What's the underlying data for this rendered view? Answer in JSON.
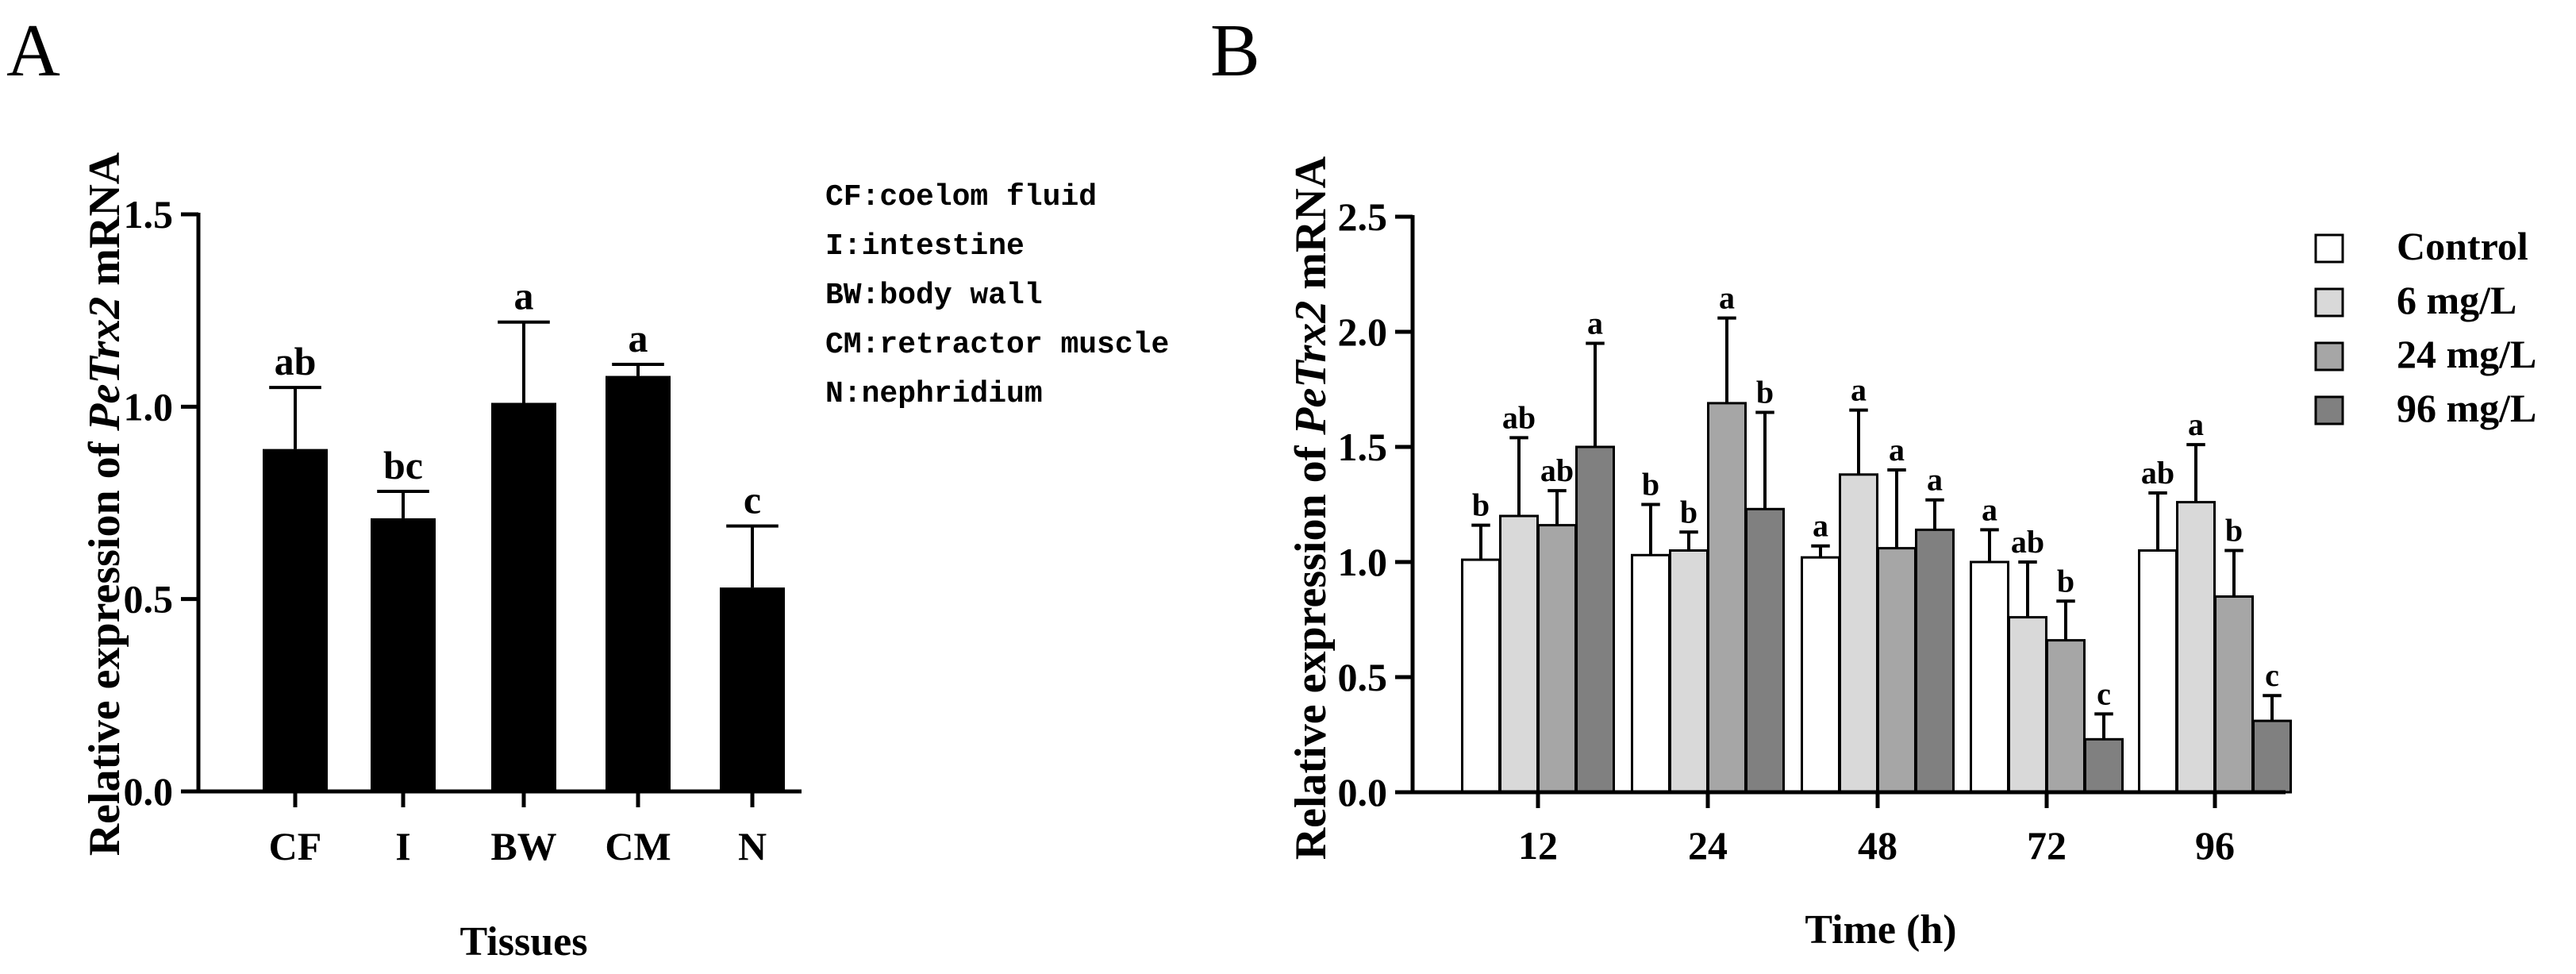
{
  "panels": {
    "a": {
      "letter": "A"
    },
    "b": {
      "letter": "B"
    }
  },
  "chart_data": [
    {
      "type": "bar",
      "panel": "A",
      "categories": [
        "CF",
        "I",
        "BW",
        "CM",
        "N"
      ],
      "values": [
        0.89,
        0.71,
        1.01,
        1.08,
        0.53
      ],
      "errors": [
        0.16,
        0.07,
        0.21,
        0.03,
        0.16
      ],
      "sig_letters": [
        "ab",
        "bc",
        "a",
        "a",
        "c"
      ],
      "xlabel": "Tissues",
      "ylabel_prefix": "Relative expression of ",
      "ylabel_italic": "PeTrx2",
      "ylabel_suffix": " mRNA",
      "ylim": [
        0,
        1.5
      ],
      "yticks": [
        "0.0",
        "0.5",
        "1.0",
        "1.5"
      ],
      "yticks_values": [
        0,
        0.5,
        1.0,
        1.5
      ],
      "bar_color": "#000000",
      "legend_placement": "top-right",
      "legend": [
        "CF:coelom fluid",
        "I:intestine",
        "BW:body wall",
        "CM:retractor muscle",
        "N:nephridium"
      ]
    },
    {
      "type": "bar",
      "panel": "B",
      "categories": [
        "12",
        "24",
        "48",
        "72",
        "96"
      ],
      "series": [
        {
          "name": "Control",
          "color": "#ffffff",
          "values": [
            1.01,
            1.03,
            1.02,
            1.0,
            1.05
          ],
          "errors": [
            0.15,
            0.22,
            0.05,
            0.14,
            0.25
          ],
          "sig_letters": [
            "b",
            "b",
            "a",
            "a",
            "ab"
          ]
        },
        {
          "name": "6 mg/L",
          "color": "#d9d9d9",
          "values": [
            1.2,
            1.05,
            1.38,
            0.76,
            1.26
          ],
          "errors": [
            0.34,
            0.08,
            0.28,
            0.24,
            0.25
          ],
          "sig_letters": [
            "ab",
            "b",
            "a",
            "ab",
            "a"
          ]
        },
        {
          "name": "24 mg/L",
          "color": "#a6a6a6",
          "values": [
            1.16,
            1.69,
            1.06,
            0.66,
            0.85
          ],
          "errors": [
            0.15,
            0.37,
            0.34,
            0.17,
            0.2
          ],
          "sig_letters": [
            "ab",
            "a",
            "a",
            "b",
            "b"
          ]
        },
        {
          "name": "96 mg/L",
          "color": "#808080",
          "values": [
            1.5,
            1.23,
            1.14,
            0.23,
            0.31
          ],
          "errors": [
            0.45,
            0.42,
            0.13,
            0.11,
            0.11
          ],
          "sig_letters": [
            "a",
            "b",
            "a",
            "c",
            "c"
          ]
        }
      ],
      "xlabel": "Time (h)",
      "ylabel_prefix": "Relative expression of ",
      "ylabel_italic": "PeTrx2",
      "ylabel_suffix": " mRNA",
      "ylim": [
        0,
        2.5
      ],
      "yticks": [
        "0.0",
        "0.5",
        "1.0",
        "1.5",
        "2.0",
        "2.5"
      ],
      "yticks_values": [
        0,
        0.5,
        1.0,
        1.5,
        2.0,
        2.5
      ],
      "legend_placement": "top-right"
    }
  ]
}
